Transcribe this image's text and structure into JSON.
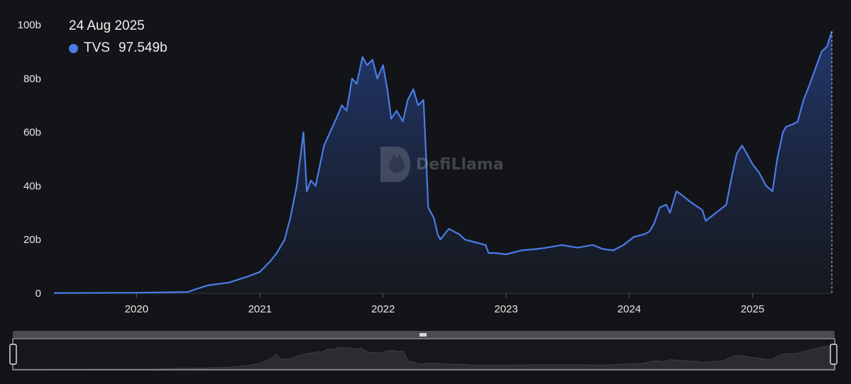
{
  "tooltip": {
    "date": "24 Aug 2025",
    "series_label": "TVS",
    "value": "97.549b",
    "dot_color": "#4a7ce8"
  },
  "watermark": {
    "text": "DefiLlama"
  },
  "colors": {
    "background": "#131417",
    "line": "#4a7ce8",
    "axis": "#3a3d44"
  },
  "chart_data": {
    "type": "area",
    "x_ticks": [
      "2020",
      "2021",
      "2022",
      "2023",
      "2024",
      "2025"
    ],
    "y_ticks": [
      "0",
      "20b",
      "40b",
      "60b",
      "80b",
      "100b"
    ],
    "ylim": [
      0,
      100
    ],
    "xlim": [
      "2019-05-01",
      "2025-08-24"
    ],
    "series": [
      {
        "name": "TVS",
        "x": [
          "2019-05-01",
          "2020-01-01",
          "2020-06-01",
          "2020-07-01",
          "2020-08-01",
          "2020-10-01",
          "2020-12-01",
          "2021-01-01",
          "2021-02-01",
          "2021-02-20",
          "2021-03-15",
          "2021-04-01",
          "2021-04-20",
          "2021-05-10",
          "2021-05-20",
          "2021-06-01",
          "2021-06-15",
          "2021-07-10",
          "2021-08-15",
          "2021-09-01",
          "2021-09-15",
          "2021-10-01",
          "2021-10-15",
          "2021-11-01",
          "2021-11-15",
          "2021-12-01",
          "2021-12-15",
          "2022-01-01",
          "2022-01-15",
          "2022-01-25",
          "2022-02-10",
          "2022-03-01",
          "2022-03-15",
          "2022-04-01",
          "2022-04-15",
          "2022-05-01",
          "2022-05-09",
          "2022-05-15",
          "2022-06-01",
          "2022-06-12",
          "2022-06-20",
          "2022-07-15",
          "2022-08-15",
          "2022-09-01",
          "2022-10-01",
          "2022-11-01",
          "2022-11-10",
          "2022-12-01",
          "2023-01-01",
          "2023-02-15",
          "2023-04-01",
          "2023-05-01",
          "2023-06-15",
          "2023-08-01",
          "2023-09-15",
          "2023-10-15",
          "2023-11-15",
          "2023-12-15",
          "2024-01-15",
          "2024-02-15",
          "2024-03-01",
          "2024-03-15",
          "2024-04-01",
          "2024-04-20",
          "2024-05-01",
          "2024-05-20",
          "2024-06-01",
          "2024-07-01",
          "2024-08-05",
          "2024-08-15",
          "2024-09-15",
          "2024-10-15",
          "2024-11-01",
          "2024-11-15",
          "2024-12-01",
          "2024-12-15",
          "2025-01-01",
          "2025-01-20",
          "2025-02-10",
          "2025-03-01",
          "2025-03-15",
          "2025-04-01",
          "2025-04-10",
          "2025-05-01",
          "2025-05-15",
          "2025-06-01",
          "2025-06-20",
          "2025-07-10",
          "2025-07-25",
          "2025-08-10",
          "2025-08-24"
        ],
        "values": [
          0.1,
          0.2,
          0.5,
          1.8,
          3,
          4,
          6.5,
          8,
          12,
          15,
          20,
          28,
          40,
          60,
          38,
          42,
          40,
          55,
          65,
          70,
          68,
          80,
          78,
          88,
          85,
          87,
          80,
          85,
          75,
          65,
          68,
          64,
          72,
          76,
          70,
          72,
          50,
          32,
          28,
          22,
          20,
          24,
          22,
          20,
          19,
          18,
          15,
          15,
          14.5,
          16,
          16.5,
          17,
          18,
          17,
          18,
          16.5,
          16,
          18,
          21,
          22,
          23,
          26,
          32,
          33,
          30,
          38,
          37,
          34,
          31,
          27,
          30,
          33,
          44,
          52,
          55,
          52,
          48,
          45,
          40,
          38,
          50,
          60,
          62,
          63,
          64,
          72,
          78,
          85,
          90,
          92,
          97.549
        ]
      }
    ]
  }
}
